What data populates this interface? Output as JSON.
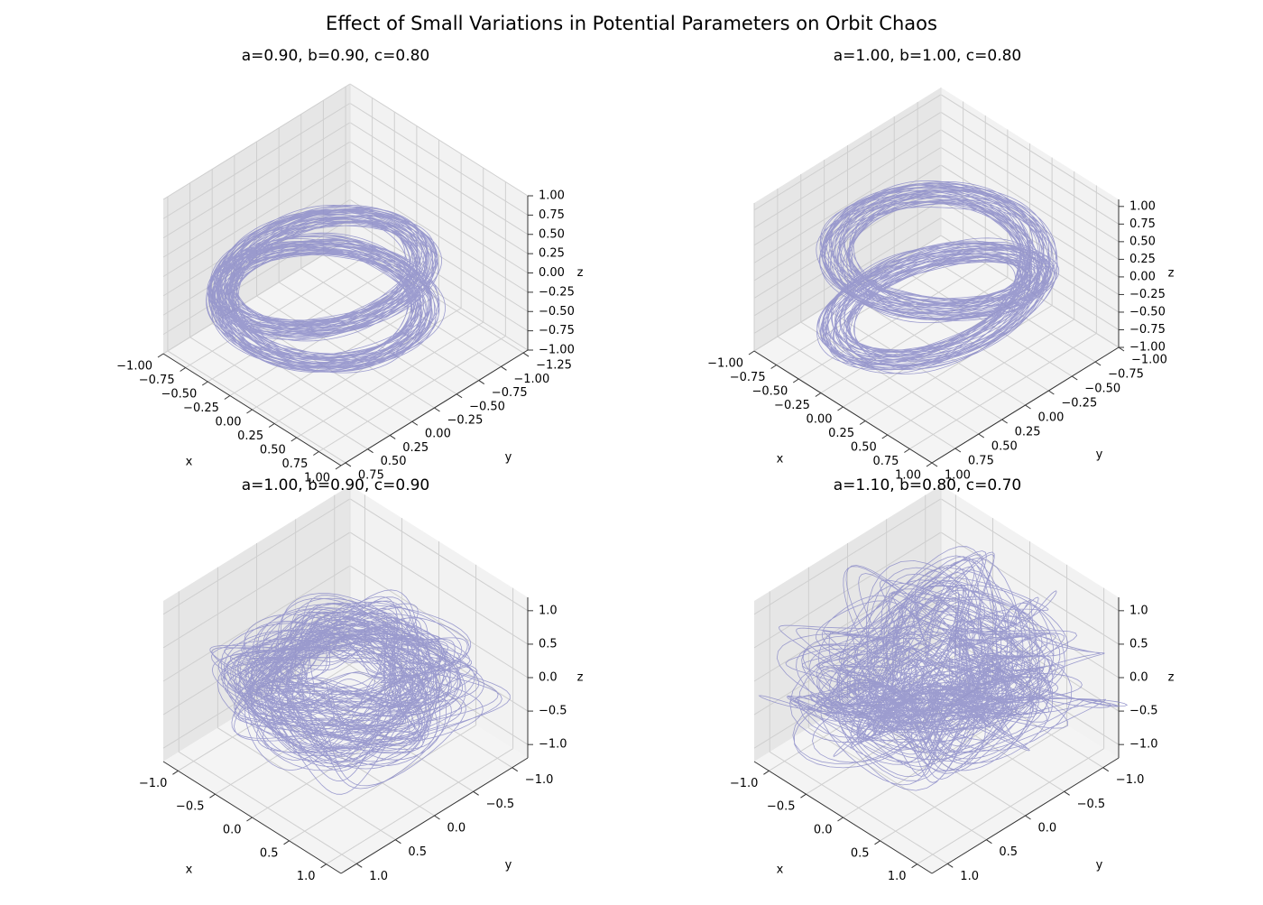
{
  "figure": {
    "title": "Effect of Small Variations in Potential Parameters on Orbit Chaos",
    "line_color": "#8c8cc8"
  },
  "chart_data": [
    {
      "type": "line",
      "dimension": "3d",
      "title": "a=0.90, b=0.90, c=0.80",
      "xlabel": "x",
      "ylabel": "y",
      "zlabel": "z",
      "xlim": [
        -1.0,
        1.0
      ],
      "ylim": [
        -1.3,
        0.8
      ],
      "zlim": [
        -1.0,
        1.0
      ],
      "xticks": [
        1.0,
        0.75,
        0.5,
        0.25,
        0.0,
        -0.25,
        -0.5,
        -0.75,
        -1.0
      ],
      "xtick_labels": [
        "1.00",
        "0.75",
        "0.50",
        "0.25",
        "0.00",
        "−0.25",
        "−0.50",
        "−0.75",
        "−1.00"
      ],
      "yticks": [
        -1.25,
        -1.0,
        -0.75,
        -0.5,
        -0.25,
        0.0,
        0.25,
        0.5,
        0.75
      ],
      "ytick_labels": [
        "−1.25",
        "−1.00",
        "−0.75",
        "−0.50",
        "−0.25",
        "0.00",
        "0.25",
        "0.50",
        "0.75"
      ],
      "zticks": [
        -1.0,
        -0.75,
        -0.5,
        -0.25,
        0.0,
        0.25,
        0.5,
        0.75,
        1.0
      ],
      "ztick_labels": [
        "−1.00",
        "−0.75",
        "−0.50",
        "−0.25",
        "0.00",
        "0.25",
        "0.50",
        "0.75",
        "1.00"
      ],
      "orbit": {
        "rx": 0.8,
        "ry": 0.8,
        "zamp": 0.3,
        "ramp": 0.12,
        "turns": 90,
        "chaos": 0.05,
        "tilt": 0.35
      }
    },
    {
      "type": "line",
      "dimension": "3d",
      "title": "a=1.00, b=1.00, c=0.80",
      "xlabel": "x",
      "ylabel": "y",
      "zlabel": "z",
      "xlim": [
        -1.0,
        1.0
      ],
      "ylim": [
        -1.0,
        1.0
      ],
      "zlim": [
        -1.0,
        1.1
      ],
      "xticks": [
        1.0,
        0.75,
        0.5,
        0.25,
        0.0,
        -0.25,
        -0.5,
        -0.75,
        -1.0
      ],
      "xtick_labels": [
        "1.00",
        "0.75",
        "0.50",
        "0.25",
        "0.00",
        "−0.25",
        "−0.50",
        "−0.75",
        "−1.00"
      ],
      "yticks": [
        -1.0,
        -0.75,
        -0.5,
        -0.25,
        0.0,
        0.25,
        0.5,
        0.75,
        1.0
      ],
      "ytick_labels": [
        "−1.00",
        "−0.75",
        "−0.50",
        "−0.25",
        "0.00",
        "0.25",
        "0.50",
        "0.75",
        "1.00"
      ],
      "zticks": [
        -1.0,
        -0.75,
        -0.5,
        -0.25,
        0.0,
        0.25,
        0.5,
        0.75,
        1.0
      ],
      "ztick_labels": [
        "−1.00",
        "−0.75",
        "−0.50",
        "−0.25",
        "0.00",
        "0.25",
        "0.50",
        "0.75",
        "1.00"
      ],
      "orbit": {
        "rx": 0.78,
        "ry": 0.78,
        "zamp": 0.55,
        "ramp": 0.15,
        "turns": 90,
        "chaos": 0.05,
        "tilt": 0.6
      }
    },
    {
      "type": "line",
      "dimension": "3d",
      "title": "a=1.00, b=0.90, c=0.90",
      "xlabel": "x",
      "ylabel": "y",
      "zlabel": "z",
      "xlim": [
        -1.2,
        1.2
      ],
      "ylim": [
        -1.2,
        1.2
      ],
      "zlim": [
        -1.2,
        1.2
      ],
      "xticks": [
        1.0,
        0.5,
        0.0,
        -0.5,
        -1.0
      ],
      "xtick_labels": [
        "1.0",
        "0.5",
        "0.0",
        "−0.5",
        "−1.0"
      ],
      "yticks": [
        -1.0,
        -0.5,
        0.0,
        0.5,
        1.0
      ],
      "ytick_labels": [
        "−1.0",
        "−0.5",
        "0.0",
        "0.5",
        "1.0"
      ],
      "zticks": [
        -1.0,
        -0.5,
        0.0,
        0.5,
        1.0
      ],
      "ztick_labels": [
        "−1.0",
        "−0.5",
        "0.0",
        "0.5",
        "1.0"
      ],
      "orbit": {
        "rx": 0.8,
        "ry": 0.75,
        "zamp": 0.3,
        "ramp": 0.25,
        "turns": 110,
        "chaos": 0.35,
        "tilt": 0.2
      }
    },
    {
      "type": "line",
      "dimension": "3d",
      "title": "a=1.10, b=0.80, c=0.70",
      "xlabel": "x",
      "ylabel": "y",
      "zlabel": "z",
      "xlim": [
        -1.2,
        1.2
      ],
      "ylim": [
        -1.2,
        1.2
      ],
      "zlim": [
        -1.2,
        1.2
      ],
      "xticks": [
        1.0,
        0.5,
        0.0,
        -0.5,
        -1.0
      ],
      "xtick_labels": [
        "1.0",
        "0.5",
        "0.0",
        "−0.5",
        "−1.0"
      ],
      "yticks": [
        -1.0,
        -0.5,
        0.0,
        0.5,
        1.0
      ],
      "ytick_labels": [
        "−1.0",
        "−0.5",
        "0.0",
        "0.5",
        "1.0"
      ],
      "zticks": [
        -1.0,
        -0.5,
        0.0,
        0.5,
        1.0
      ],
      "ztick_labels": [
        "−1.0",
        "−0.5",
        "0.0",
        "0.5",
        "1.0"
      ],
      "orbit": {
        "rx": 0.75,
        "ry": 0.75,
        "zamp": 0.5,
        "ramp": 0.3,
        "turns": 120,
        "chaos": 0.55,
        "tilt": 0.35
      }
    }
  ]
}
